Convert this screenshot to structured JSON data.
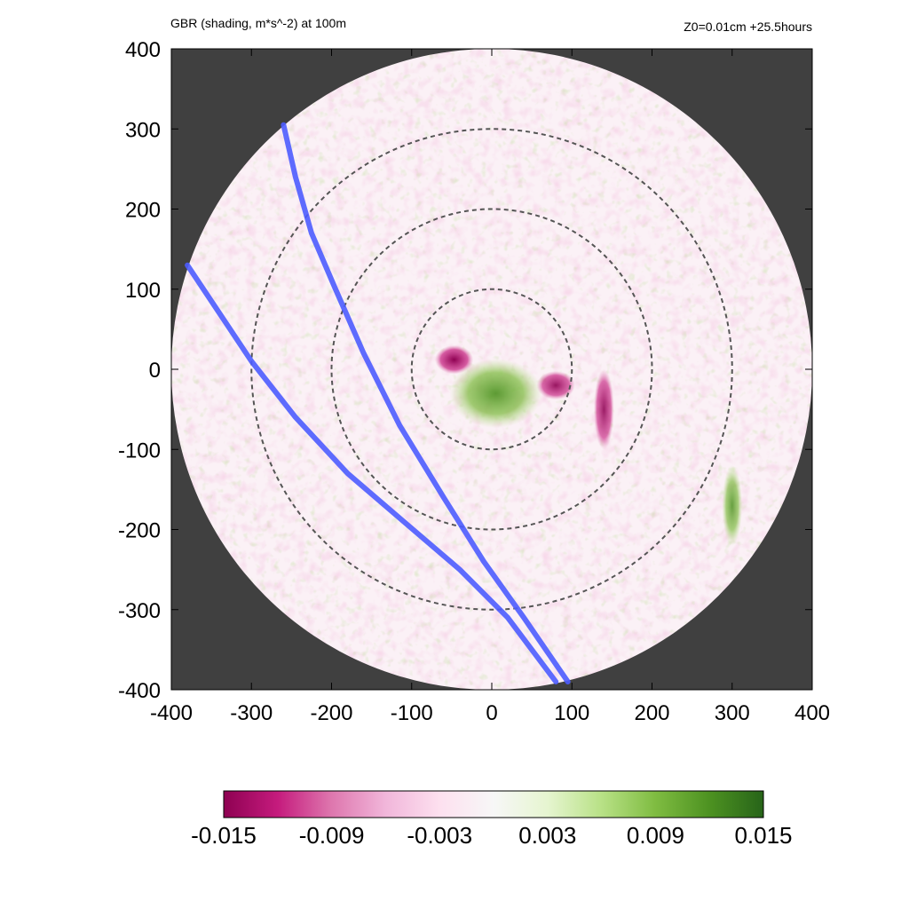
{
  "header": {
    "left_title": "GBR (shading, m*s^-2) at 100m",
    "right_title": "Z0=0.01cm  +25.5hours"
  },
  "chart_data": {
    "type": "heatmap",
    "title": "GBR (shading, m*s^-2) at 100m",
    "subtitle": "Z0=0.01cm  +25.5hours",
    "xlabel": "",
    "ylabel": "",
    "xlim": [
      -400,
      400
    ],
    "ylim": [
      -400,
      400
    ],
    "x_ticks": [
      -400,
      -300,
      -200,
      -100,
      0,
      100,
      200,
      300,
      400
    ],
    "y_ticks": [
      -400,
      -300,
      -200,
      -100,
      0,
      100,
      200,
      300,
      400
    ],
    "domain_radius": 400,
    "background_color": "#404040",
    "range_rings": {
      "radii": [
        100,
        200,
        300
      ],
      "style": "dashed",
      "color": "#555555"
    },
    "colorbar": {
      "orientation": "horizontal",
      "min": -0.015,
      "max": 0.015,
      "tick_values": [
        -0.015,
        -0.009,
        -0.003,
        0.003,
        0.009,
        0.015
      ],
      "tick_labels": [
        "-0.015",
        "-0.009",
        "-0.003",
        "0.003",
        "0.009",
        "0.015"
      ],
      "colors": [
        "#8e0152",
        "#c51b7d",
        "#de77ae",
        "#f1b6da",
        "#fde0ef",
        "#f7f7f7",
        "#e6f5d0",
        "#b8e186",
        "#7fbc41",
        "#4d9221",
        "#276419"
      ]
    },
    "tracks": [
      {
        "color": "#4d5cff",
        "points": [
          [
            -260,
            305
          ],
          [
            -245,
            240
          ],
          [
            -225,
            170
          ],
          [
            -195,
            100
          ],
          [
            -160,
            20
          ],
          [
            -115,
            -70
          ],
          [
            -60,
            -160
          ],
          [
            -10,
            -240
          ],
          [
            40,
            -310
          ],
          [
            95,
            -390
          ]
        ]
      },
      {
        "color": "#4d5cff",
        "points": [
          [
            -380,
            130
          ],
          [
            -340,
            70
          ],
          [
            -300,
            10
          ],
          [
            -245,
            -60
          ],
          [
            -180,
            -130
          ],
          [
            -110,
            -190
          ],
          [
            -40,
            -250
          ],
          [
            20,
            -310
          ],
          [
            80,
            -390
          ]
        ]
      }
    ],
    "features": [
      {
        "type": "strong_negative_blob",
        "x": -47,
        "y": 12,
        "value": -0.015
      },
      {
        "type": "positive_core",
        "x": 5,
        "y": -30,
        "value": 0.012
      },
      {
        "type": "negative_eyewall",
        "x": 80,
        "y": -20,
        "value": -0.012
      },
      {
        "type": "positive_rainband",
        "x": 300,
        "y": -170,
        "value": 0.01
      },
      {
        "type": "negative_rainband",
        "x": 140,
        "y": -50,
        "value": -0.011
      }
    ]
  }
}
